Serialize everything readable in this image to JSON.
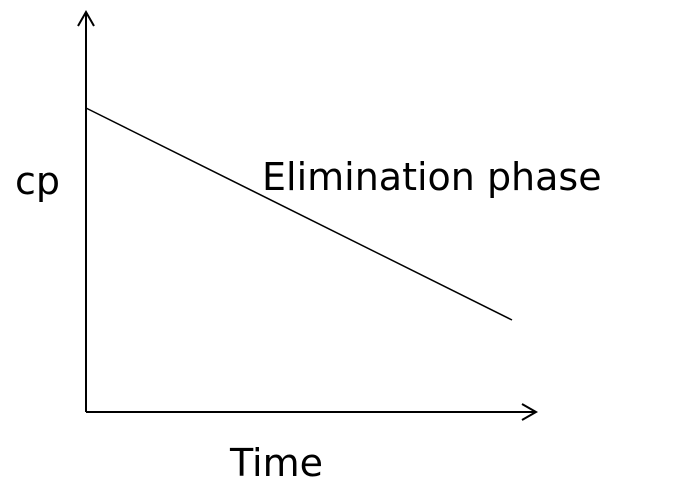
{
  "diagram": {
    "y_axis_label": "cp",
    "x_axis_label": "Time",
    "line_label": "Elimination phase"
  }
}
